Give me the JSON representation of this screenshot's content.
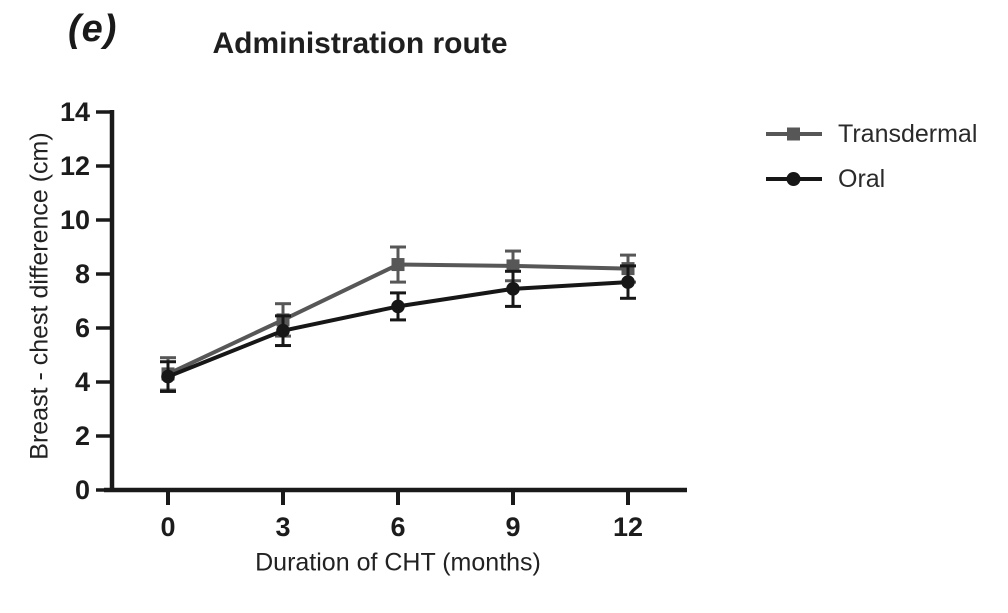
{
  "figure": {
    "panel_label": "(e)",
    "title": "Administration route"
  },
  "legend": {
    "items": [
      {
        "label": "Transdermal",
        "marker": "square",
        "color": "#575757"
      },
      {
        "label": "Oral",
        "marker": "circle",
        "color": "#171717"
      }
    ]
  },
  "chart_data": {
    "type": "line",
    "title": "Administration route",
    "xlabel": "Duration of CHT (months)",
    "ylabel": "Breast - chest difference (cm)",
    "x": [
      0,
      3,
      6,
      9,
      12
    ],
    "xticks": [
      0,
      3,
      6,
      9,
      12
    ],
    "yticks": [
      0,
      2,
      4,
      6,
      8,
      10,
      12,
      14
    ],
    "xlim": [
      0,
      12
    ],
    "ylim": [
      0,
      14
    ],
    "grid": false,
    "error_bars": true,
    "legend_position": "right-outside",
    "axis_color": "#1a1a1a",
    "series": [
      {
        "name": "Transdermal",
        "marker": "square",
        "color": "#575757",
        "values": [
          4.3,
          6.3,
          8.35,
          8.3,
          8.2
        ],
        "errors": [
          0.6,
          0.6,
          0.65,
          0.55,
          0.5
        ]
      },
      {
        "name": "Oral",
        "marker": "circle",
        "color": "#171717",
        "values": [
          4.2,
          5.9,
          6.8,
          7.45,
          7.7
        ],
        "errors": [
          0.55,
          0.55,
          0.5,
          0.65,
          0.6
        ]
      }
    ]
  }
}
